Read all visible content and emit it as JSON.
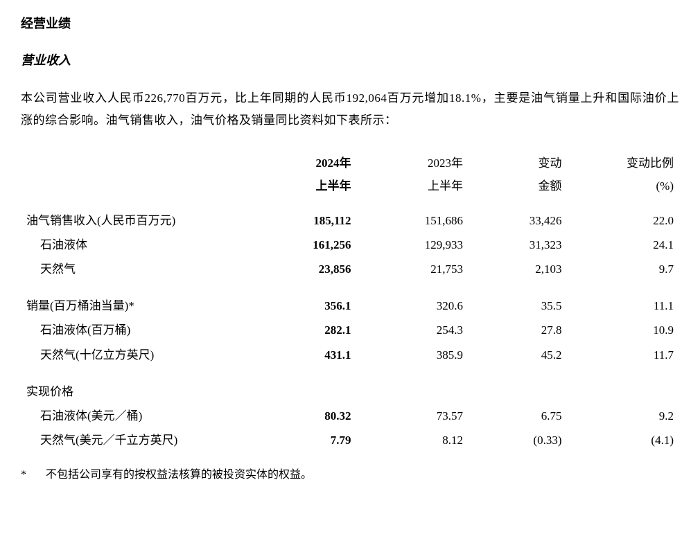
{
  "section_title": "经营业绩",
  "subsection_title": "营业收入",
  "paragraph": "本公司营业收入人民币226,770百万元，比上年同期的人民币192,064百万元增加18.1%，主要是油气销量上升和国际油价上涨的综合影响。油气销售收入，油气价格及销量同比资料如下表所示：",
  "table": {
    "headers": {
      "col1_line1": "2024年",
      "col1_line2": "上半年",
      "col2_line1": "2023年",
      "col2_line2": "上半年",
      "col3_line1": "变动",
      "col3_line2": "金额",
      "col4_line1": "变动比例",
      "col4_line2": "(%)"
    },
    "rows": [
      {
        "label": "油气销售收入(人民币百万元)",
        "indent": false,
        "c1": "185,112",
        "c2": "151,686",
        "c3": "33,426",
        "c4": "22.0"
      },
      {
        "label": "石油液体",
        "indent": true,
        "c1": "161,256",
        "c2": "129,933",
        "c3": "31,323",
        "c4": "24.1"
      },
      {
        "label": "天然气",
        "indent": true,
        "c1": "23,856",
        "c2": "21,753",
        "c3": "2,103",
        "c4": "9.7"
      },
      {
        "spacer": true
      },
      {
        "label": "销量(百万桶油当量)*",
        "indent": false,
        "c1": "356.1",
        "c2": "320.6",
        "c3": "35.5",
        "c4": "11.1"
      },
      {
        "label": "石油液体(百万桶)",
        "indent": true,
        "c1": "282.1",
        "c2": "254.3",
        "c3": "27.8",
        "c4": "10.9"
      },
      {
        "label": "天然气(十亿立方英尺)",
        "indent": true,
        "c1": "431.1",
        "c2": "385.9",
        "c3": "45.2",
        "c4": "11.7"
      },
      {
        "spacer": true
      },
      {
        "label": "实现价格",
        "indent": false,
        "c1": "",
        "c2": "",
        "c3": "",
        "c4": ""
      },
      {
        "label": "石油液体(美元／桶)",
        "indent": true,
        "c1": "80.32",
        "c2": "73.57",
        "c3": "6.75",
        "c4": "9.2"
      },
      {
        "label": "天然气(美元／千立方英尺)",
        "indent": true,
        "c1": "7.79",
        "c2": "8.12",
        "c3": "(0.33)",
        "c4": "(4.1)"
      }
    ]
  },
  "footnote": {
    "marker": "*",
    "text": "不包括公司享有的按权益法核算的被投资实体的权益。"
  }
}
